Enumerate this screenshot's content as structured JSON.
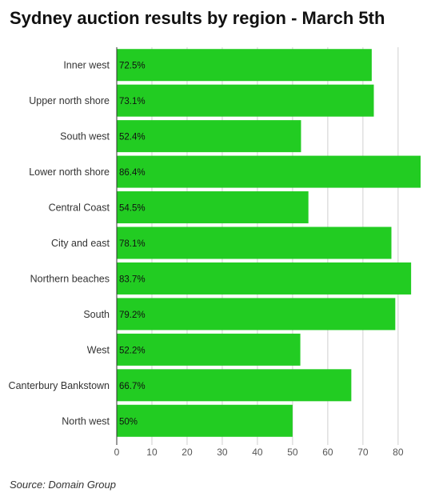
{
  "title": "Sydney auction results by region - March 5th",
  "source": "Source: Domain Group",
  "colors": {
    "bar": "#22cc22",
    "grid": "#d0d0d0",
    "axis": "#333333"
  },
  "chart_data": {
    "type": "bar",
    "orientation": "horizontal",
    "title": "Sydney auction results by region - March 5th",
    "categories": [
      "Inner west",
      "Upper north shore",
      "South west",
      "Lower north shore",
      "Central Coast",
      "City and east",
      "Northern beaches",
      "South",
      "West",
      "Canterbury Bankstown",
      "North west"
    ],
    "values": [
      72.5,
      73.1,
      52.4,
      86.4,
      54.5,
      78.1,
      83.7,
      79.2,
      52.2,
      66.7,
      50
    ],
    "value_labels": [
      "72.5%",
      "73.1%",
      "52.4%",
      "86.4%",
      "54.5%",
      "78.1%",
      "83.7%",
      "79.2%",
      "52.2%",
      "66.7%",
      "50%"
    ],
    "xticks": [
      0,
      10,
      20,
      30,
      40,
      50,
      60,
      70,
      80
    ],
    "xlim": [
      0,
      86.4
    ],
    "grid": true,
    "legend": "none"
  }
}
